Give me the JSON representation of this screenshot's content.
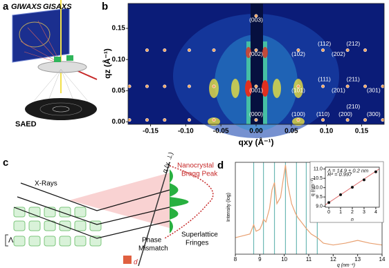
{
  "figure": {
    "panel_labels": {
      "a": "a",
      "b": "b",
      "c": "c",
      "d": "d"
    },
    "a": {
      "giwaxs": "GIWAXS",
      "gisaxs": "GISAXS",
      "saed": "SAED"
    },
    "c": {
      "xrays": "X-Rays",
      "lambda": "Λ",
      "d": "d",
      "bragg1": "Nanocrystal",
      "bragg2": "Bragg Peak",
      "fringe1": "Superlattice",
      "fringe2": "Fringes",
      "phase1": "Phase",
      "phase2": "Mismatch",
      "axis": "q (γ, ⊥)"
    }
  },
  "chart_data": [
    {
      "type": "scatter",
      "x_label": "qxy (Å⁻¹)",
      "y_label": "qz (Å⁻¹)",
      "color": "#f5a35c",
      "xlim": [
        -0.182,
        0.182
      ],
      "ylim": [
        -0.004,
        0.19
      ],
      "xticks": [
        -0.15,
        {
          "value": -0.1,
          "label": "-0.10"
        },
        -0.05,
        {
          "value": 0,
          "label": "0.00"
        },
        0.05,
        {
          "value": 0.1,
          "label": "0.10"
        },
        0.15
      ],
      "yticks": [
        {
          "value": 0,
          "label": "0.00"
        },
        0.05,
        {
          "value": 0.1,
          "label": "0.10"
        },
        0.15
      ],
      "x": [
        -0.18,
        -0.155,
        -0.13,
        -0.095,
        -0.06,
        0,
        0.06,
        0.095,
        0.13,
        0.155,
        0.18,
        -0.18,
        -0.155,
        -0.13,
        -0.095,
        -0.06,
        0,
        0.06,
        0.095,
        0.13,
        0.155,
        0.18,
        -0.155,
        -0.13,
        -0.095,
        -0.06,
        0,
        0.06,
        0.095,
        0.13,
        0.155,
        0
      ],
      "y": [
        0.003,
        0.003,
        0.003,
        0.003,
        0.003,
        0.003,
        0.003,
        0.003,
        0.003,
        0.003,
        0.003,
        0.057,
        0.057,
        0.057,
        0.057,
        0.057,
        0.057,
        0.057,
        0.057,
        0.057,
        0.057,
        0.057,
        0.115,
        0.115,
        0.115,
        0.115,
        0.115,
        0.115,
        0.115,
        0.115,
        0.115,
        0.17
      ],
      "annotations": [
        {
          "text": "(003)",
          "x": 0,
          "y": 0.163
        },
        {
          "text": "(002)",
          "x": 0,
          "y": 0.108
        },
        {
          "text": "(001)",
          "x": 0,
          "y": 0.05
        },
        {
          "text": "(000)",
          "x": 0,
          "y": 0.012
        },
        {
          "text": "(102)",
          "x": 0.06,
          "y": 0.108
        },
        {
          "text": "(112)",
          "x": 0.097,
          "y": 0.125
        },
        {
          "text": "(212)",
          "x": 0.138,
          "y": 0.125
        },
        {
          "text": "(202)",
          "x": 0.117,
          "y": 0.108
        },
        {
          "text": "(111)",
          "x": 0.097,
          "y": 0.068
        },
        {
          "text": "(211)",
          "x": 0.138,
          "y": 0.068
        },
        {
          "text": "(101)",
          "x": 0.06,
          "y": 0.05
        },
        {
          "text": "(201)",
          "x": 0.117,
          "y": 0.05
        },
        {
          "text": "(301)",
          "x": 0.167,
          "y": 0.05
        },
        {
          "text": "(210)",
          "x": 0.138,
          "y": 0.024
        },
        {
          "text": "(100)",
          "x": 0.06,
          "y": 0.012
        },
        {
          "text": "(110)",
          "x": 0.095,
          "y": 0.012
        },
        {
          "text": "(200)",
          "x": 0.127,
          "y": 0.012
        },
        {
          "text": "(300)",
          "x": 0.167,
          "y": 0.012
        }
      ]
    },
    {
      "type": "line",
      "x_label": "q (nm⁻¹)",
      "y_label": "Intensity (log)",
      "color": "#e8a070",
      "ref_color": "#6bb8b4",
      "xlim": [
        8,
        14
      ],
      "ylim": [
        0,
        1
      ],
      "xticks": [
        8,
        9,
        10,
        11,
        12,
        13,
        14
      ],
      "x": [
        8,
        8.3,
        8.6,
        8.75,
        8.85,
        9,
        9.1,
        9.15,
        9.25,
        9.4,
        9.5,
        9.6,
        9.7,
        9.85,
        9.95,
        10.05,
        10.15,
        10.3,
        10.45,
        10.55,
        10.7,
        10.9,
        11.1,
        11.35,
        11.6,
        12,
        12.5,
        13,
        13.5,
        14
      ],
      "values": [
        0.18,
        0.2,
        0.22,
        0.32,
        0.25,
        0.27,
        0.33,
        0.38,
        0.35,
        0.5,
        0.7,
        0.78,
        0.55,
        0.62,
        0.8,
        0.97,
        0.75,
        0.55,
        0.45,
        0.4,
        0.35,
        0.28,
        0.22,
        0.18,
        0.12,
        0.1,
        0.12,
        0.15,
        0.12,
        0.1
      ],
      "reference_lines": [
        8.75,
        9.15,
        9.6,
        10.05,
        10.5,
        10.9,
        11.35
      ]
    },
    {
      "type": "scatter",
      "x_label": "n",
      "y_label": "q (nm⁻¹)",
      "color": "#111111",
      "fit_color": "#e07070",
      "xlim": [
        -0.3,
        4.3
      ],
      "ylim": [
        8.95,
        11.1
      ],
      "xticks": [
        0,
        1,
        2,
        3,
        4
      ],
      "yticks": [
        {
          "value": 9,
          "label": "9.0"
        },
        9.5,
        {
          "value": 10,
          "label": "10.0"
        },
        10.5,
        {
          "value": 11,
          "label": "11.0"
        }
      ],
      "x": [
        0,
        1,
        2,
        3,
        4
      ],
      "y": [
        9.2,
        9.62,
        10.02,
        10.42,
        10.85
      ],
      "fit": {
        "intercept": 9.2,
        "slope": 0.42
      },
      "annotations": [
        {
          "text": "Λ = 14.9 ± 0.2 nm",
          "x": 0,
          "y": 10.9
        },
        {
          "text": "R² = 0.997",
          "x": 0,
          "y": 10.7
        }
      ]
    }
  ]
}
